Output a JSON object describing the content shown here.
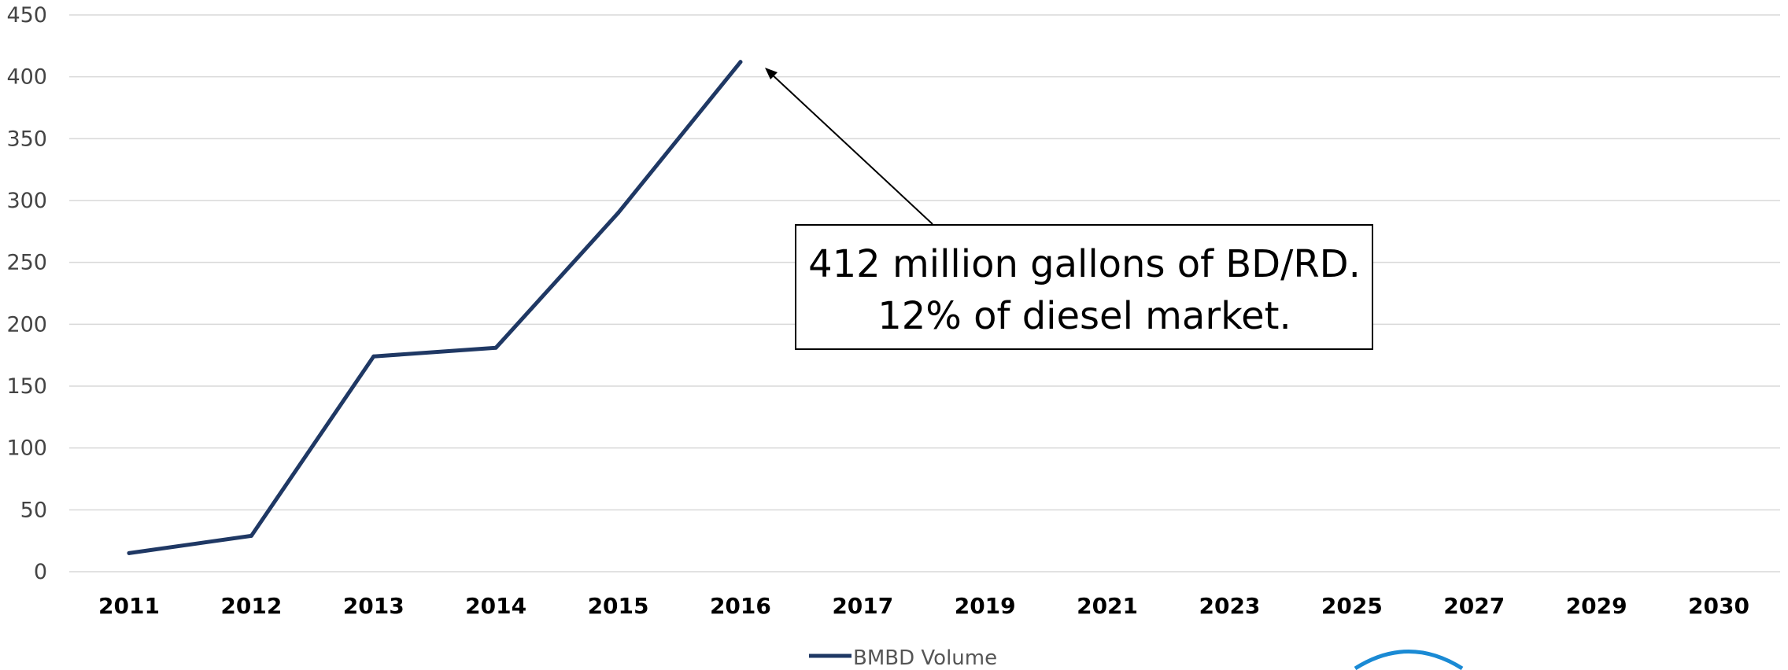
{
  "chart_data": {
    "type": "line",
    "categories": [
      "2011",
      "2012",
      "2013",
      "2014",
      "2015",
      "2016",
      "2017",
      "2019",
      "2021",
      "2023",
      "2025",
      "2027",
      "2029",
      "2030"
    ],
    "series": [
      {
        "name": "BMBD Volume",
        "values": [
          15,
          29,
          174,
          181,
          290,
          412,
          null,
          null,
          null,
          null,
          null,
          null,
          null,
          null
        ]
      }
    ],
    "y_ticks": [
      "0",
      "50",
      "100",
      "150",
      "200",
      "250",
      "300",
      "350",
      "400",
      "450"
    ],
    "ylim": [
      0,
      450
    ],
    "grid": true,
    "legend_position": "bottom",
    "annotation": {
      "lines": [
        "412 million gallons of BD/RD.",
        "12% of diesel market."
      ],
      "points_to": {
        "category": "2016",
        "value": 412
      }
    },
    "colors": {
      "series_line": "#1f3864",
      "grid": "#d9d9d9",
      "logo": "#1a8ad4"
    }
  }
}
